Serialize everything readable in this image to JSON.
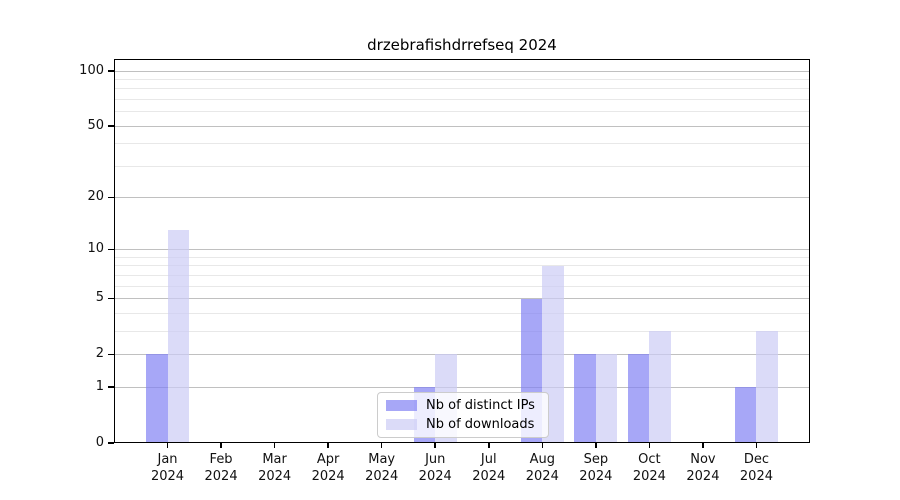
{
  "chart_data": {
    "type": "bar",
    "title": "drzebrafishdrrefseq 2024",
    "categories": [
      "Jan",
      "Feb",
      "Mar",
      "Apr",
      "May",
      "Jun",
      "Jul",
      "Aug",
      "Sep",
      "Oct",
      "Nov",
      "Dec"
    ],
    "category_year": "2024",
    "series": [
      {
        "name": "Nb of distinct IPs",
        "color": "rgba(130,130,243,0.70)",
        "values": [
          2,
          0,
          0,
          0,
          0,
          1,
          0,
          5,
          2,
          2,
          0,
          1
        ]
      },
      {
        "name": "Nb of downloads",
        "color": "rgba(204,204,245,0.70)",
        "values": [
          13,
          0,
          0,
          0,
          0,
          2,
          0,
          8,
          2,
          3,
          0,
          3
        ]
      }
    ],
    "yscale": "log1p",
    "yticks": [
      0,
      1,
      2,
      5,
      10,
      20,
      50,
      100
    ],
    "minor_yticks": [
      3,
      4,
      6,
      7,
      8,
      9,
      30,
      40,
      60,
      70,
      80,
      90
    ],
    "ylim": [
      0,
      116
    ],
    "grid": true,
    "grid_major_color": "#c0c0c0",
    "grid_minor_color": "#e8e8e8",
    "legend_position": "lower center"
  }
}
